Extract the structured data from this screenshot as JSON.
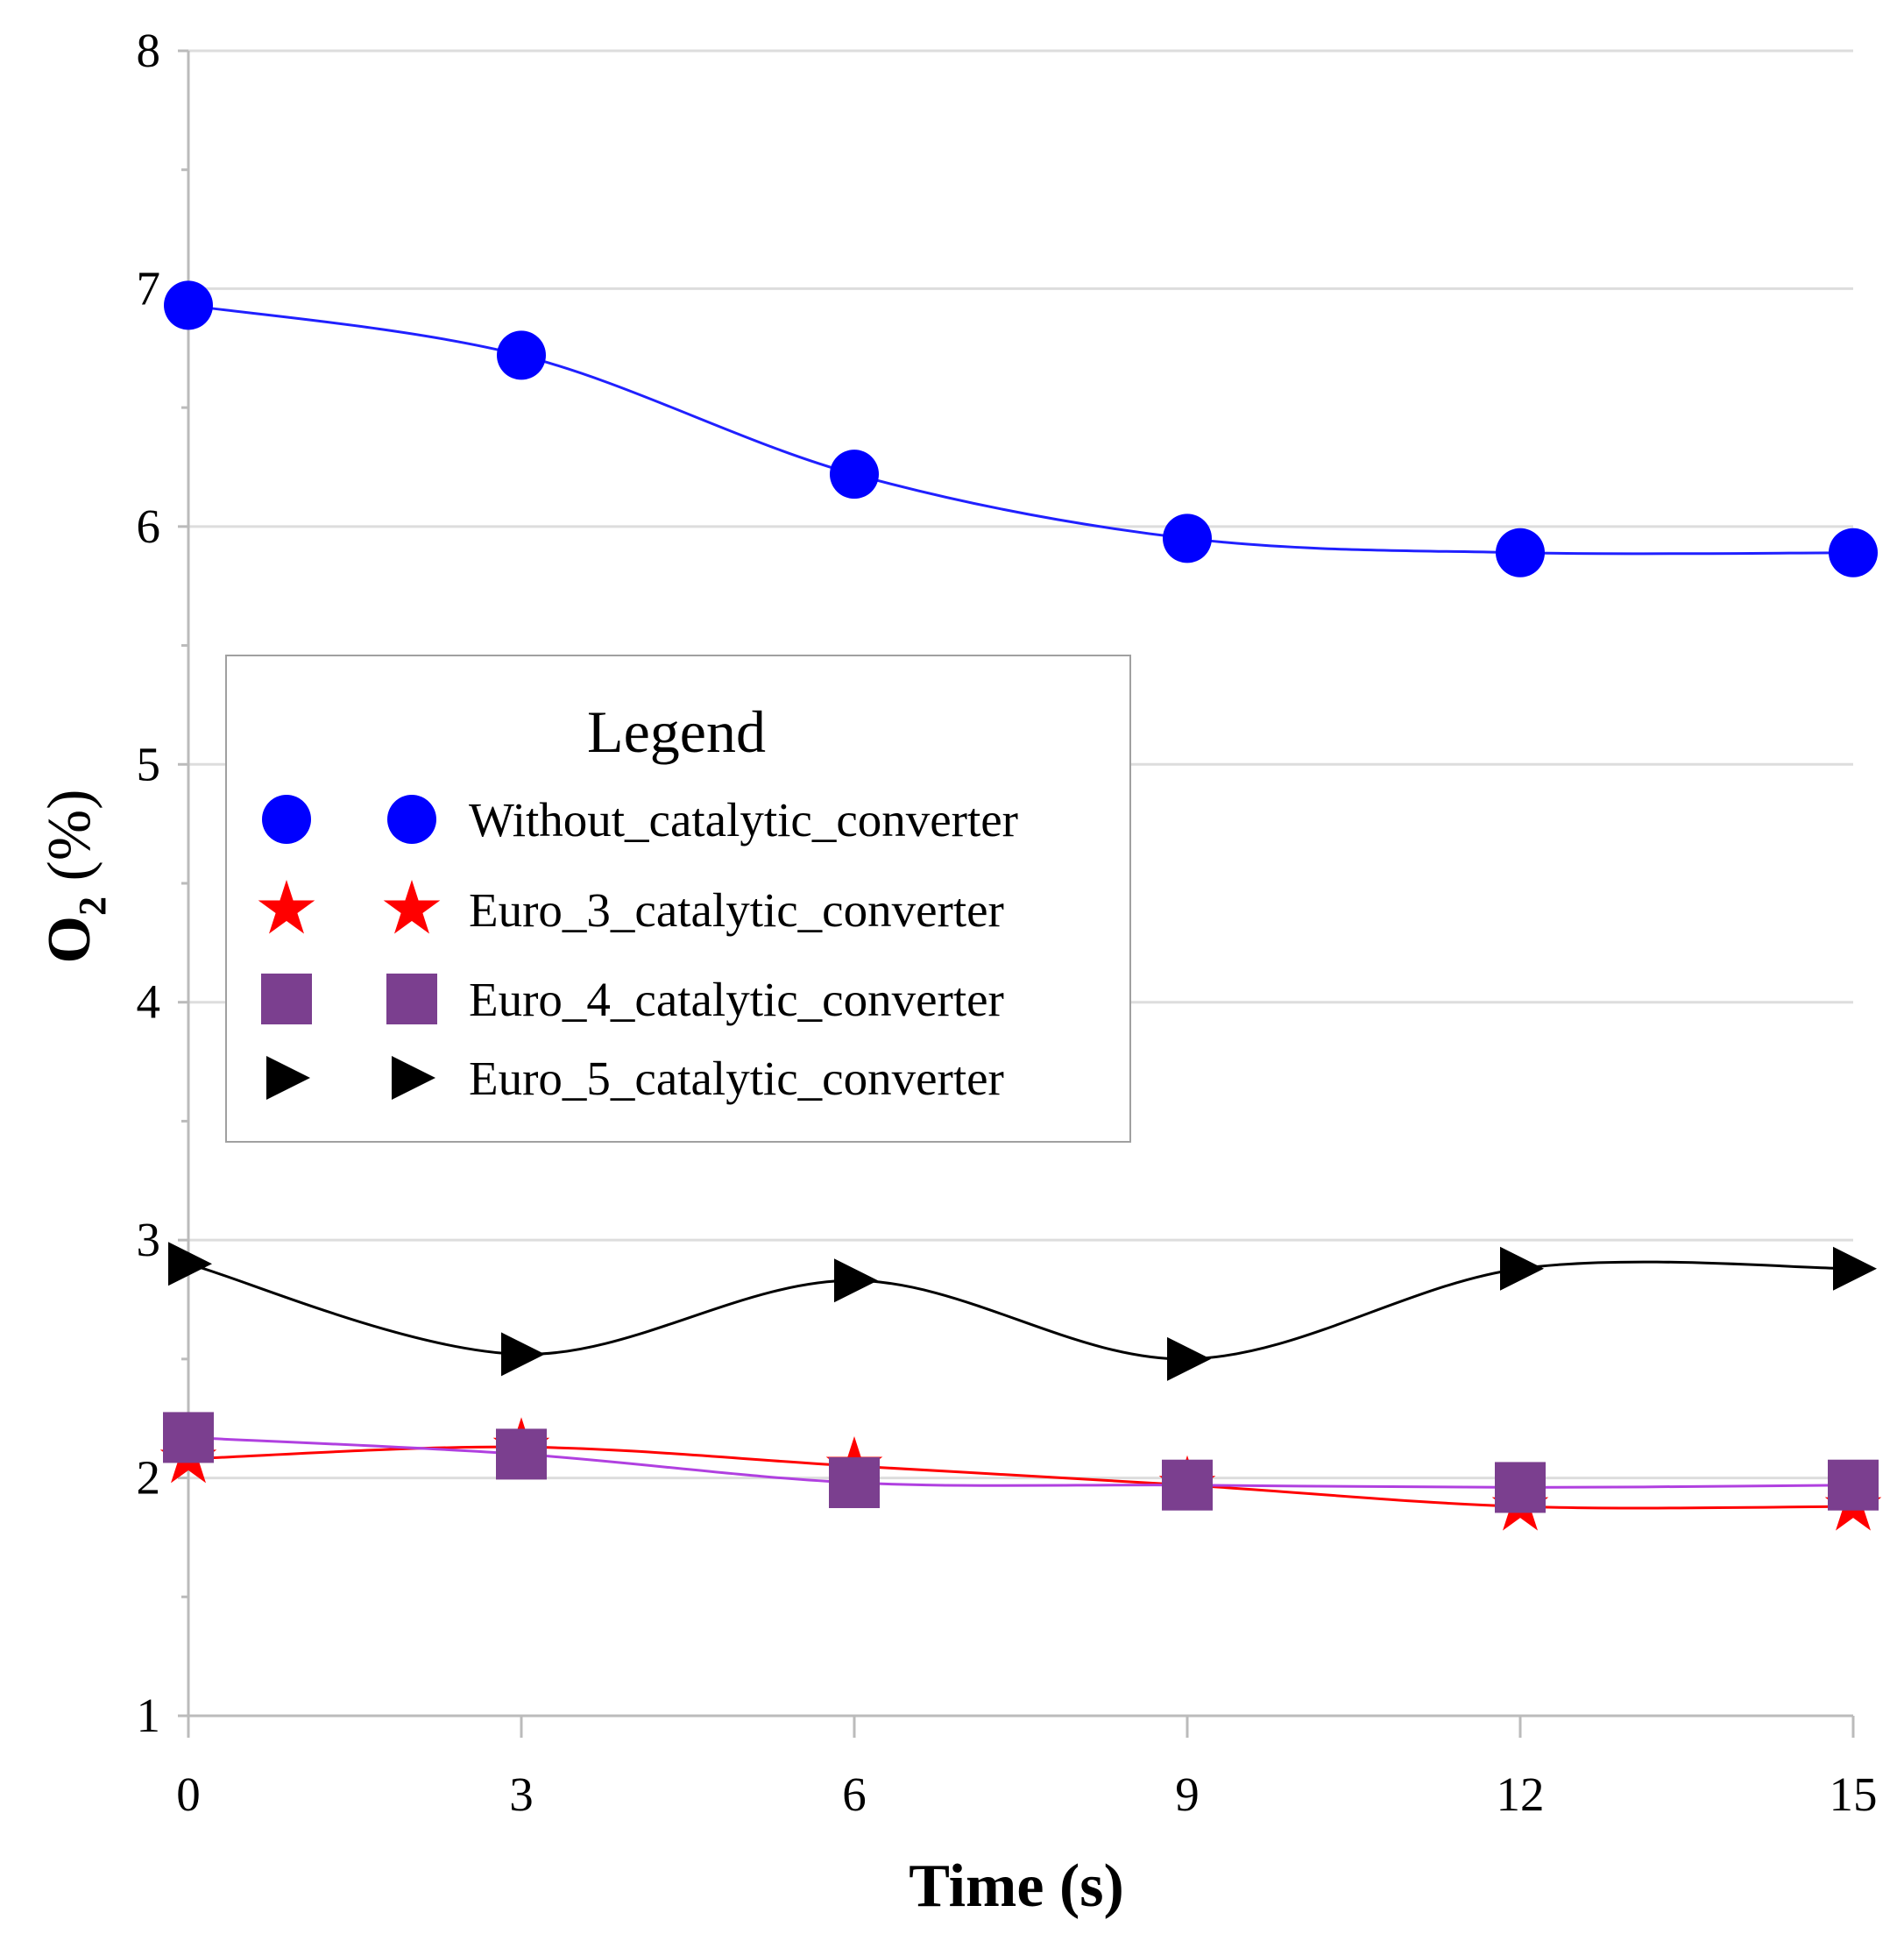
{
  "chart_data": {
    "type": "line",
    "title": "",
    "xlabel": "Time (s)",
    "ylabel_main": "O",
    "ylabel_sub": "2",
    "ylabel_unit": "(%)",
    "xlim": [
      0,
      15
    ],
    "ylim": [
      1,
      8
    ],
    "x": [
      0,
      3,
      6,
      9,
      12,
      15
    ],
    "x_ticks": [
      "0",
      "3",
      "6",
      "9",
      "12",
      "15"
    ],
    "y_ticks": [
      "1",
      "2",
      "3",
      "4",
      "5",
      "6",
      "7",
      "8"
    ],
    "grid": true,
    "legend_position": "center-left",
    "legend_title": "Legend",
    "series": [
      {
        "name": "Without_catalytic_converter",
        "marker": "circle",
        "color": "#0000ff",
        "line_color": "#2020ff",
        "values": [
          6.93,
          6.72,
          6.22,
          5.95,
          5.89,
          5.89
        ]
      },
      {
        "name": "Euro_3_catalytic_converter",
        "marker": "star",
        "color": "#ff0000",
        "line_color": "#ff0000",
        "values": [
          2.08,
          2.13,
          2.05,
          1.97,
          1.88,
          1.88
        ]
      },
      {
        "name": "Euro_4_catalytic_converter",
        "marker": "square",
        "color": "#7b3f8f",
        "line_color": "#b040e0",
        "values": [
          2.17,
          2.1,
          1.98,
          1.97,
          1.96,
          1.97
        ]
      },
      {
        "name": "Euro_5_catalytic_converter",
        "marker": "triangle",
        "color": "#000000",
        "line_color": "#000000",
        "values": [
          2.9,
          2.52,
          2.83,
          2.5,
          2.88,
          2.88
        ]
      }
    ]
  }
}
